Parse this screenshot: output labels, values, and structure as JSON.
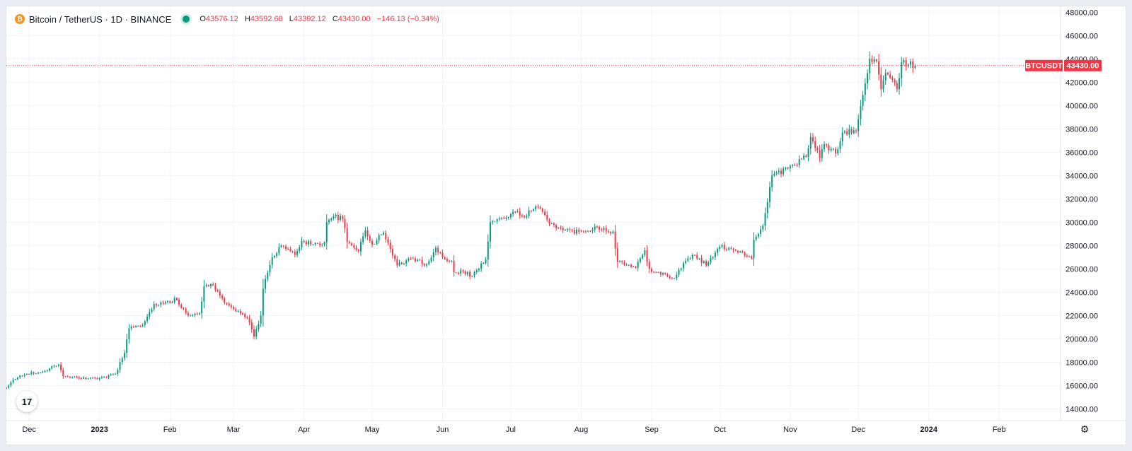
{
  "legend": {
    "symbol": "Bitcoin / TetherUS · 1D · BINANCE",
    "o_label": "O",
    "open": "43576.12",
    "h_label": "H",
    "high": "43592.68",
    "l_label": "L",
    "low": "43392.12",
    "c_label": "C",
    "close": "43430.00",
    "change": "−146.13 (−0.34%)"
  },
  "price_tag": {
    "symbol": "BTCUSDT",
    "value": "43430.00"
  },
  "logo": "17",
  "icons": {
    "coin": "bitcoin-icon",
    "logo": "tradingview-logo-icon",
    "settings": "settings-gear-icon"
  },
  "colors": {
    "up": "#089981",
    "down": "#f23645",
    "grid": "#f0f3fa",
    "last_price_line": "#f23645"
  },
  "chart_data": {
    "type": "candlestick",
    "interval": "1D",
    "exchange": "BINANCE",
    "grid": true,
    "ylim": [
      13000,
      48500
    ],
    "y_ticks": [
      "48000.00",
      "46000.00",
      "44000.00",
      "42000.00",
      "40000.00",
      "38000.00",
      "36000.00",
      "34000.00",
      "32000.00",
      "30000.00",
      "28000.00",
      "26000.00",
      "24000.00",
      "22000.00",
      "20000.00",
      "18000.00",
      "16000.00",
      "14000.00"
    ],
    "x_ticks": [
      "Dec",
      "2023",
      "Feb",
      "Mar",
      "Apr",
      "May",
      "Jun",
      "Jul",
      "Aug",
      "Sep",
      "Oct",
      "Nov",
      "Dec",
      "2024",
      "Feb"
    ],
    "x_tick_dates": [
      "2022-12-01",
      "2023-01-01",
      "2023-02-01",
      "2023-03-01",
      "2023-04-01",
      "2023-05-01",
      "2023-06-01",
      "2023-07-01",
      "2023-08-01",
      "2023-09-01",
      "2023-10-01",
      "2023-11-01",
      "2023-12-01",
      "2024-01-01",
      "2024-02-01"
    ],
    "x_start": "2022-11-21",
    "x_end": "2024-02-28",
    "last_price": 43430.0,
    "anchors": [
      [
        "2022-11-21",
        15800
      ],
      [
        "2022-11-24",
        16500
      ],
      [
        "2022-11-30",
        17000
      ],
      [
        "2022-12-05",
        17100
      ],
      [
        "2022-12-14",
        17800
      ],
      [
        "2022-12-16",
        16800
      ],
      [
        "2022-12-31",
        16550
      ],
      [
        "2023-01-08",
        17000
      ],
      [
        "2023-01-12",
        18800
      ],
      [
        "2023-01-14",
        20900
      ],
      [
        "2023-01-20",
        21200
      ],
      [
        "2023-01-25",
        23000
      ],
      [
        "2023-02-01",
        23100
      ],
      [
        "2023-02-03",
        23500
      ],
      [
        "2023-02-09",
        22000
      ],
      [
        "2023-02-14",
        22200
      ],
      [
        "2023-02-16",
        24500
      ],
      [
        "2023-02-20",
        24600
      ],
      [
        "2023-02-25",
        23100
      ],
      [
        "2023-03-03",
        22400
      ],
      [
        "2023-03-07",
        21800
      ],
      [
        "2023-03-10",
        20200
      ],
      [
        "2023-03-13",
        22000
      ],
      [
        "2023-03-14",
        24300
      ],
      [
        "2023-03-18",
        27000
      ],
      [
        "2023-03-22",
        28000
      ],
      [
        "2023-03-28",
        27200
      ],
      [
        "2023-03-31",
        28400
      ],
      [
        "2023-04-05",
        28100
      ],
      [
        "2023-04-10",
        28300
      ],
      [
        "2023-04-11",
        30000
      ],
      [
        "2023-04-14",
        30500
      ],
      [
        "2023-04-18",
        30300
      ],
      [
        "2023-04-20",
        28300
      ],
      [
        "2023-04-25",
        27500
      ],
      [
        "2023-04-26",
        28300
      ],
      [
        "2023-04-28",
        29300
      ],
      [
        "2023-05-01",
        28100
      ],
      [
        "2023-05-06",
        29100
      ],
      [
        "2023-05-09",
        27700
      ],
      [
        "2023-05-12",
        26300
      ],
      [
        "2023-05-18",
        26900
      ],
      [
        "2023-05-25",
        26400
      ],
      [
        "2023-05-29",
        27800
      ],
      [
        "2023-06-01",
        27000
      ],
      [
        "2023-06-05",
        26700
      ],
      [
        "2023-06-06",
        25700
      ],
      [
        "2023-06-10",
        25800
      ],
      [
        "2023-06-14",
        25400
      ],
      [
        "2023-06-16",
        25900
      ],
      [
        "2023-06-20",
        26800
      ],
      [
        "2023-06-22",
        30000
      ],
      [
        "2023-06-29",
        30400
      ],
      [
        "2023-07-03",
        30900
      ],
      [
        "2023-07-06",
        30500
      ],
      [
        "2023-07-13",
        31300
      ],
      [
        "2023-07-17",
        30200
      ],
      [
        "2023-07-24",
        29300
      ],
      [
        "2023-07-31",
        29200
      ],
      [
        "2023-08-08",
        29600
      ],
      [
        "2023-08-15",
        29200
      ],
      [
        "2023-08-17",
        26600
      ],
      [
        "2023-08-25",
        26100
      ],
      [
        "2023-08-29",
        27600
      ],
      [
        "2023-08-31",
        26000
      ],
      [
        "2023-09-11",
        25200
      ],
      [
        "2023-09-15",
        26500
      ],
      [
        "2023-09-20",
        27200
      ],
      [
        "2023-09-25",
        26300
      ],
      [
        "2023-10-01",
        27900
      ],
      [
        "2023-10-05",
        27800
      ],
      [
        "2023-10-11",
        27400
      ],
      [
        "2023-10-15",
        26900
      ],
      [
        "2023-10-16",
        28500
      ],
      [
        "2023-10-20",
        29700
      ],
      [
        "2023-10-23",
        33000
      ],
      [
        "2023-10-24",
        34000
      ],
      [
        "2023-10-31",
        34600
      ],
      [
        "2023-11-08",
        35600
      ],
      [
        "2023-11-10",
        37300
      ],
      [
        "2023-11-14",
        35500
      ],
      [
        "2023-11-16",
        36700
      ],
      [
        "2023-11-21",
        35900
      ],
      [
        "2023-11-24",
        37700
      ],
      [
        "2023-11-30",
        37800
      ],
      [
        "2023-12-04",
        41900
      ],
      [
        "2023-12-06",
        44000
      ],
      [
        "2023-12-09",
        43800
      ],
      [
        "2023-12-11",
        41400
      ],
      [
        "2023-12-13",
        42800
      ],
      [
        "2023-12-18",
        41400
      ],
      [
        "2023-12-20",
        43700
      ],
      [
        "2023-12-23",
        43500
      ],
      [
        "2023-12-26",
        43430
      ]
    ]
  }
}
